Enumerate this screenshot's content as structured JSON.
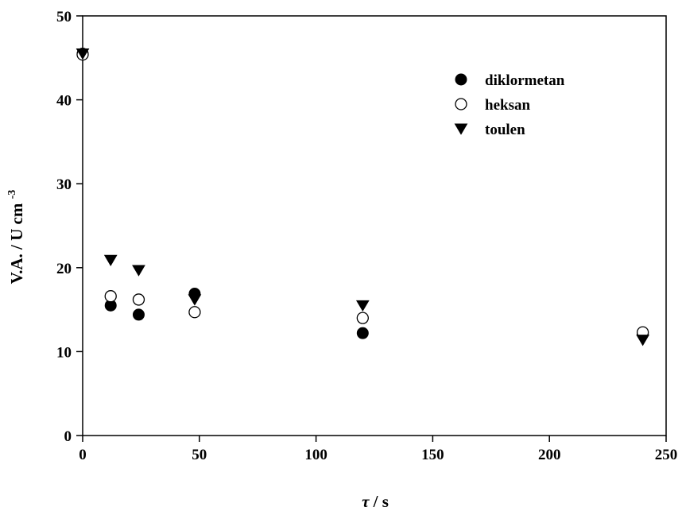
{
  "chart_data": {
    "type": "scatter",
    "title": "",
    "xlabel_symbol": "τ",
    "xlabel_unit": "/ s",
    "ylabel_main": "V.A. / U cm",
    "ylabel_sup": "-3",
    "xlim": [
      0,
      250
    ],
    "ylim": [
      0,
      50
    ],
    "xticks": [
      0,
      50,
      100,
      150,
      200,
      250
    ],
    "yticks": [
      0,
      10,
      20,
      30,
      40,
      50
    ],
    "grid": false,
    "legend_position": "top-right",
    "series": [
      {
        "name": "diklormetan",
        "marker": "filled-circle",
        "color": "#000000",
        "points": [
          [
            0,
            45.5
          ],
          [
            12,
            15.5
          ],
          [
            24,
            14.4
          ],
          [
            48,
            16.9
          ],
          [
            120,
            12.2
          ],
          [
            240,
            12.1
          ]
        ]
      },
      {
        "name": "heksan",
        "marker": "open-circle",
        "color": "#000000",
        "points": [
          [
            0,
            45.4
          ],
          [
            12,
            16.6
          ],
          [
            24,
            16.2
          ],
          [
            48,
            14.7
          ],
          [
            120,
            14.0
          ],
          [
            240,
            12.3
          ]
        ]
      },
      {
        "name": "toulen",
        "marker": "filled-triangle-down",
        "color": "#000000",
        "points": [
          [
            0,
            45.5
          ],
          [
            12,
            20.9
          ],
          [
            24,
            19.7
          ],
          [
            48,
            16.2
          ],
          [
            120,
            15.5
          ],
          [
            240,
            11.4
          ]
        ]
      }
    ]
  }
}
